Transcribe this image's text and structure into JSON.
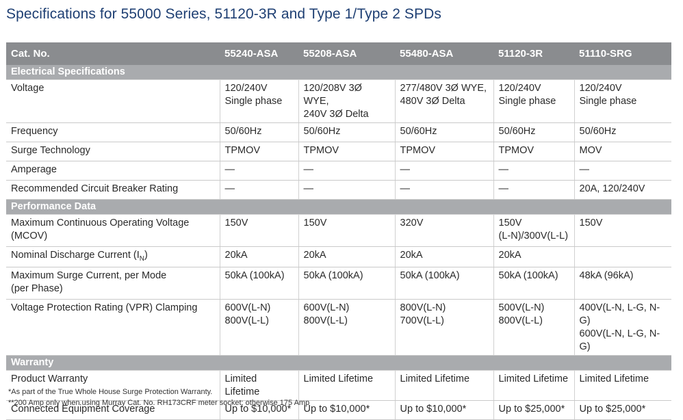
{
  "title": "Specifications for 55000 Series, 51120-3R and Type 1/Type 2 SPDs",
  "columns": [
    "Cat. No.",
    "55240-ASA",
    "55208-ASA",
    "55480-ASA",
    "51120-3R",
    "51110-SRG"
  ],
  "sections": [
    {
      "name": "Electrical Specifications",
      "rows": [
        {
          "label": "Voltage",
          "cells": [
            "120/240V\nSingle phase",
            "120/208V 3Ø WYE,\n240V 3Ø Delta",
            "277/480V 3Ø WYE,\n480V 3Ø Delta",
            "120/240V\nSingle phase",
            "120/240V\nSingle phase"
          ]
        },
        {
          "label": "Frequency",
          "cells": [
            "50/60Hz",
            "50/60Hz",
            "50/60Hz",
            "50/60Hz",
            "50/60Hz"
          ]
        },
        {
          "label": "Surge Technology",
          "cells": [
            "TPMOV",
            "TPMOV",
            "TPMOV",
            "TPMOV",
            "MOV"
          ]
        },
        {
          "label": "Amperage",
          "cells": [
            "—",
            "—",
            "—",
            "—",
            "—"
          ]
        },
        {
          "label": "Recommended Circuit Breaker Rating",
          "cells": [
            "—",
            "—",
            "—",
            "—",
            "20A, 120/240V"
          ]
        }
      ]
    },
    {
      "name": "Performance Data",
      "rows": [
        {
          "label": "Maximum Continuous Operating Voltage\n(MCOV)",
          "cells": [
            "150V",
            "150V",
            "320V",
            "150V\n(L-N)/300V(L-L)",
            "150V"
          ]
        },
        {
          "label": "Nominal Discharge Current (I",
          "label_sub": "N",
          "label_end": ")",
          "cells": [
            "20kA",
            "20kA",
            "20kA",
            "20kA",
            ""
          ]
        },
        {
          "label": "Maximum Surge Current, per Mode\n(per Phase)",
          "cells": [
            "50kA (100kA)",
            "50kA (100kA)",
            "50kA (100kA)",
            "50kA (100kA)",
            "48kA (96kA)"
          ]
        },
        {
          "label": "Voltage Protection Rating (VPR) Clamping",
          "cells": [
            "600V(L-N)\n800V(L-L)",
            "600V(L-N)\n800V(L-L)",
            "800V(L-N)\n700V(L-L)",
            "500V(L-N)\n800V(L-L)",
            "400V(L-N, L-G, N-G)\n600V(L-N, L-G, N-G)"
          ]
        }
      ]
    },
    {
      "name": "Warranty",
      "rows": [
        {
          "label": "Product Warranty",
          "cells": [
            "Limited Lifetime",
            "Limited Lifetime",
            "Limited Lifetime",
            "Limited Lifetime",
            "Limited Lifetime"
          ]
        },
        {
          "label": "Connected Equipment Coverage",
          "cells": [
            "Up to $10,000*",
            "Up to $10,000*",
            "Up to $10,000*",
            "Up to $25,000*",
            "Up to $25,000*"
          ]
        }
      ]
    }
  ],
  "footnotes": [
    "*As part of the True Whole House Surge Protection Warranty.",
    "**200 Amp only when using Murray Cat. No. RH173CRF meter socket; otherwise 175 Amp"
  ]
}
